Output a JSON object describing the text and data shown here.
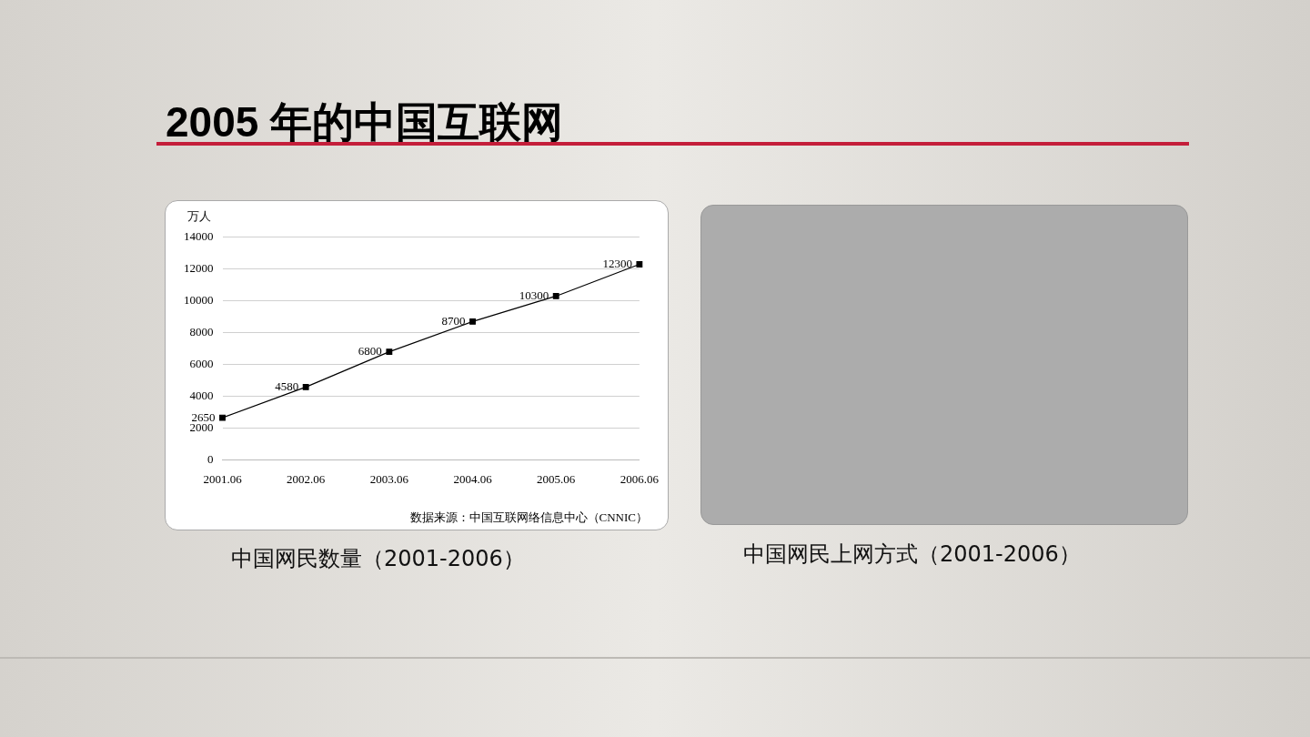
{
  "chart_data": {
    "type": "line",
    "title": "2005 年的中国互联网",
    "ylabel": "万人",
    "categories": [
      "2001.06",
      "2002.06",
      "2003.06",
      "2004.06",
      "2005.06",
      "2006.06"
    ],
    "series": [
      {
        "color": "#000000",
        "values": [
          2650,
          4580,
          6800,
          8700,
          10300,
          12300
        ]
      }
    ],
    "ylim": [
      0,
      14000
    ],
    "yticks": [
      0,
      2000,
      4000,
      6000,
      8000,
      10000,
      12000,
      14000
    ],
    "grid": "y",
    "legend": false,
    "marker": "square",
    "line_style": "solid",
    "data_labels": true,
    "annotations": [
      "数据来源：中国互联网络信息中心（CNNIC）",
      "中国网民数量（2001-2006）",
      "中国网民上网方式（2001-2006）"
    ]
  }
}
